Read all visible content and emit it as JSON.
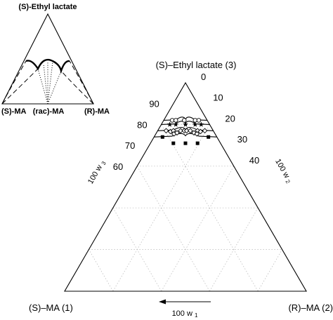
{
  "chart_data": {
    "type": "ternary-phase-diagram",
    "inset": {
      "title": "(S)-Ethyl lactate",
      "vertex_left": "(S)-MA",
      "vertex_middle": "(rac)-MA",
      "vertex_right": "(R)-MA"
    },
    "main": {
      "apex_label": "(S)–Ethyl lactate (3)",
      "left_label": "(S)–MA (1)",
      "right_label": "(R)–MA (2)",
      "left_axis_title": "100 w",
      "left_axis_sub": "3",
      "right_axis_title": "100 w",
      "right_axis_sub": "2",
      "bottom_axis_title": "100 w",
      "bottom_axis_sub": "1",
      "left_ticks": [
        "90",
        "80",
        "70",
        "60"
      ],
      "left_tick_values": [
        90,
        80,
        70,
        60
      ],
      "right_ticks": [
        "0",
        "10",
        "20",
        "30",
        "40"
      ],
      "right_tick_values": [
        0,
        10,
        20,
        30,
        40
      ],
      "grid": true,
      "series": [
        {
          "marker": "circle",
          "w3": 82,
          "points": [
            {
              "w1": 14.5,
              "w2": 3.5,
              "w3": 82
            },
            {
              "w1": 13.0,
              "w2": 5.0,
              "w3": 82
            },
            {
              "w1": 9.5,
              "w2": 8.5,
              "w3": 82
            },
            {
              "w1": 5.0,
              "w2": 13.0,
              "w3": 82
            },
            {
              "w1": 3.5,
              "w2": 14.5,
              "w3": 82
            }
          ]
        },
        {
          "marker": "star",
          "w3": 80,
          "points": [
            {
              "w1": 16.5,
              "w2": 3.5,
              "w3": 80
            },
            {
              "w1": 14.0,
              "w2": 6.0,
              "w3": 80
            },
            {
              "w1": 10.0,
              "w2": 10.0,
              "w3": 80
            },
            {
              "w1": 6.0,
              "w2": 14.0,
              "w3": 80
            },
            {
              "w1": 3.5,
              "w2": 16.5,
              "w3": 80
            }
          ]
        },
        {
          "marker": "diamond",
          "w3": 77,
          "points": [
            {
              "w1": 19.5,
              "w2": 3.5,
              "w3": 77
            },
            {
              "w1": 18.0,
              "w2": 5.5,
              "w3": 77
            },
            {
              "w1": 16.5,
              "w2": 6.5,
              "w3": 77
            },
            {
              "w1": 17.0,
              "w2": 7.5,
              "w3": 75.5
            },
            {
              "w1": 15.5,
              "w2": 8.5,
              "w3": 76
            },
            {
              "w1": 13.5,
              "w2": 9.5,
              "w3": 77
            },
            {
              "w1": 12.0,
              "w2": 11.0,
              "w3": 77
            },
            {
              "w1": 11.0,
              "w2": 12.0,
              "w3": 77
            },
            {
              "w1": 9.5,
              "w2": 13.5,
              "w3": 77
            },
            {
              "w1": 8.5,
              "w2": 15.5,
              "w3": 76
            },
            {
              "w1": 6.5,
              "w2": 16.5,
              "w3": 77
            },
            {
              "w1": 5.5,
              "w2": 18.0,
              "w3": 77
            },
            {
              "w1": 3.5,
              "w2": 19.5,
              "w3": 77
            },
            {
              "w1": 7.5,
              "w2": 17.0,
              "w3": 75.5
            }
          ]
        },
        {
          "marker": "square",
          "w3": 74,
          "points": [
            {
              "w1": 22.5,
              "w2": 3.5,
              "w3": 74
            },
            {
              "w1": 19.5,
              "w2": 9.5,
              "w3": 71
            },
            {
              "w1": 14.5,
              "w2": 14.5,
              "w3": 71
            },
            {
              "w1": 9.5,
              "w2": 19.5,
              "w3": 71
            },
            {
              "w1": 3.5,
              "w2": 22.5,
              "w3": 74
            }
          ]
        }
      ]
    }
  }
}
